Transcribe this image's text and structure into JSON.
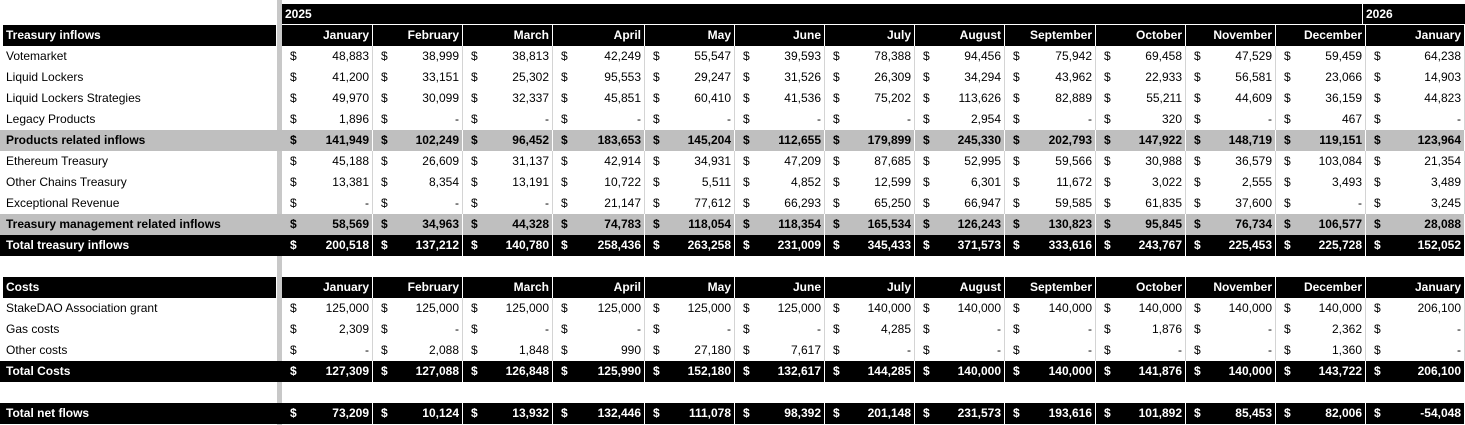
{
  "years": {
    "y2025": "2025",
    "y2026": "2026"
  },
  "months": [
    "January",
    "February",
    "March",
    "April",
    "May",
    "June",
    "July",
    "August",
    "September",
    "October",
    "November",
    "December",
    "January"
  ],
  "currency": "$",
  "inflows": {
    "header": "Treasury inflows",
    "rows": [
      {
        "label": "Votemarket",
        "style": "data",
        "values": [
          "48,883",
          "38,999",
          "38,813",
          "42,249",
          "55,547",
          "39,593",
          "78,388",
          "94,456",
          "75,942",
          "69,458",
          "47,529",
          "59,459",
          "64,238"
        ]
      },
      {
        "label": "Liquid Lockers",
        "style": "data",
        "values": [
          "41,200",
          "33,151",
          "25,302",
          "95,553",
          "29,247",
          "31,526",
          "26,309",
          "34,294",
          "43,962",
          "22,933",
          "56,581",
          "23,066",
          "14,903"
        ]
      },
      {
        "label": "Liquid Lockers Strategies",
        "style": "data",
        "values": [
          "49,970",
          "30,099",
          "32,337",
          "45,851",
          "60,410",
          "41,536",
          "75,202",
          "113,626",
          "82,889",
          "55,211",
          "44,609",
          "36,159",
          "44,823"
        ]
      },
      {
        "label": "Legacy Products",
        "style": "data",
        "values": [
          "1,896",
          "-",
          "-",
          "-",
          "-",
          "-",
          "-",
          "2,954",
          "-",
          "320",
          "-",
          "467",
          "-"
        ]
      },
      {
        "label": "Products related inflows",
        "style": "grey",
        "values": [
          "141,949",
          "102,249",
          "96,452",
          "183,653",
          "145,204",
          "112,655",
          "179,899",
          "245,330",
          "202,793",
          "147,922",
          "148,719",
          "119,151",
          "123,964"
        ]
      },
      {
        "label": "Ethereum Treasury",
        "style": "data",
        "values": [
          "45,188",
          "26,609",
          "31,137",
          "42,914",
          "34,931",
          "47,209",
          "87,685",
          "52,995",
          "59,566",
          "30,988",
          "36,579",
          "103,084",
          "21,354"
        ]
      },
      {
        "label": "Other Chains Treasury",
        "style": "data",
        "values": [
          "13,381",
          "8,354",
          "13,191",
          "10,722",
          "5,511",
          "4,852",
          "12,599",
          "6,301",
          "11,672",
          "3,022",
          "2,555",
          "3,493",
          "3,489"
        ]
      },
      {
        "label": "Exceptional Revenue",
        "style": "data",
        "values": [
          "-",
          "-",
          "-",
          "21,147",
          "77,612",
          "66,293",
          "65,250",
          "66,947",
          "59,585",
          "61,835",
          "37,600",
          "-",
          "3,245"
        ]
      },
      {
        "label": "Treasury management related inflows",
        "style": "grey",
        "values": [
          "58,569",
          "34,963",
          "44,328",
          "74,783",
          "118,054",
          "118,354",
          "165,534",
          "126,243",
          "130,823",
          "95,845",
          "76,734",
          "106,577",
          "28,088"
        ]
      },
      {
        "label": "Total treasury inflows",
        "style": "black",
        "values": [
          "200,518",
          "137,212",
          "140,780",
          "258,436",
          "263,258",
          "231,009",
          "345,433",
          "371,573",
          "333,616",
          "243,767",
          "225,453",
          "225,728",
          "152,052"
        ]
      }
    ]
  },
  "costs": {
    "header": "Costs",
    "rows": [
      {
        "label": "StakeDAO Association grant",
        "style": "data",
        "values": [
          "125,000",
          "125,000",
          "125,000",
          "125,000",
          "125,000",
          "125,000",
          "140,000",
          "140,000",
          "140,000",
          "140,000",
          "140,000",
          "140,000",
          "206,100"
        ]
      },
      {
        "label": "Gas costs",
        "style": "data",
        "values": [
          "2,309",
          "-",
          "-",
          "-",
          "-",
          "-",
          "4,285",
          "-",
          "-",
          "1,876",
          "-",
          "2,362",
          "-"
        ]
      },
      {
        "label": "Other costs",
        "style": "data",
        "values": [
          "-",
          "2,088",
          "1,848",
          "990",
          "27,180",
          "7,617",
          "-",
          "-",
          "-",
          "-",
          "-",
          "1,360",
          "-"
        ]
      },
      {
        "label": "Total Costs",
        "style": "black",
        "values": [
          "127,309",
          "127,088",
          "126,848",
          "125,990",
          "152,180",
          "132,617",
          "144,285",
          "140,000",
          "140,000",
          "141,876",
          "140,000",
          "143,722",
          "206,100"
        ]
      }
    ]
  },
  "net": {
    "label": "Total net flows",
    "style": "black",
    "values": [
      "73,209",
      "10,124",
      "13,932",
      "132,446",
      "111,078",
      "98,392",
      "201,148",
      "231,573",
      "193,616",
      "101,892",
      "85,453",
      "82,006",
      "-54,048"
    ]
  },
  "colors": {
    "header_bg": "#000000",
    "subtotal_bg": "#bfbfbf",
    "divider": "#c8c8c8"
  }
}
